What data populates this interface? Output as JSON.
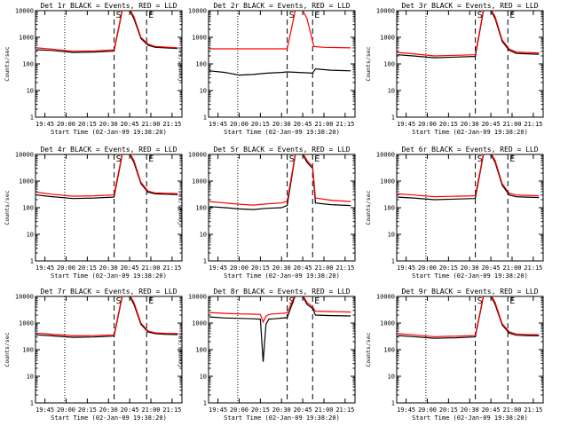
{
  "figure": {
    "background": "#ffffff",
    "colors": {
      "events": "#000000",
      "lld": "#ff0000",
      "axes": "#000000"
    }
  },
  "chart_data": [
    {
      "type": "line",
      "title": "Det 1r BLACK = Events, RED = LLD",
      "xlabel": "Start Time (02-Jan-09 19:38:20)",
      "ylabel": "Counts/sec",
      "yscale": "log",
      "ylim": [
        1,
        10000
      ],
      "ytick_labels": [
        "1",
        "10",
        "100",
        "1000",
        "10000"
      ],
      "xlim": [
        "19:38:20",
        "21:22"
      ],
      "xtick_labels": [
        "19:45",
        "20:00",
        "20:15",
        "20:30",
        "20:45",
        "21:00",
        "21:15"
      ],
      "flags": [
        "S",
        "E"
      ],
      "series": [
        {
          "name": "BLACK = Events",
          "color": "#000000",
          "x": [
            "19:39",
            "19:50",
            "20:05",
            "20:20",
            "20:33",
            "20:34",
            "20:40",
            "20:44",
            "20:48",
            "20:53",
            "20:58",
            "21:03",
            "21:10",
            "21:19"
          ],
          "values": [
            340,
            320,
            270,
            280,
            300,
            305,
            12000,
            13000,
            5000,
            900,
            500,
            420,
            400,
            380
          ]
        },
        {
          "name": "RED = LLD",
          "color": "#ff0000",
          "x": [
            "19:39",
            "19:50",
            "20:05",
            "20:20",
            "20:33",
            "20:34",
            "20:40",
            "20:44",
            "20:48",
            "20:53",
            "20:58",
            "21:03",
            "21:10",
            "21:19"
          ],
          "values": [
            400,
            360,
            300,
            310,
            330,
            340,
            13000,
            14000,
            6000,
            1000,
            560,
            450,
            430,
            400
          ]
        }
      ]
    },
    {
      "type": "line",
      "title": "Det 2r BLACK = Events, RED = LLD",
      "xlabel": "Start Time (02-Jan-09 19:38:20)",
      "ylabel": "Counts/sec",
      "yscale": "log",
      "ylim": [
        1,
        10000
      ],
      "ytick_labels": [
        "1",
        "10",
        "100",
        "1000",
        "10000"
      ],
      "xlim": [
        "19:38:20",
        "21:22"
      ],
      "xtick_labels": [
        "19:45",
        "20:00",
        "20:15",
        "20:30",
        "20:45",
        "21:00",
        "21:15"
      ],
      "flags": [
        "S",
        "E"
      ],
      "series": [
        {
          "name": "BLACK = Events",
          "color": "#000000",
          "x": [
            "19:39",
            "19:50",
            "20:00",
            "20:10",
            "20:20",
            "20:30",
            "20:34",
            "20:52",
            "20:54",
            "21:05",
            "21:19"
          ],
          "values": [
            55,
            48,
            38,
            40,
            45,
            48,
            50,
            45,
            65,
            58,
            55
          ]
        },
        {
          "name": "RED = LLD",
          "color": "#ff0000",
          "x": [
            "19:39",
            "20:34",
            "20:40",
            "20:44",
            "20:48",
            "20:53",
            "21:00",
            "21:10",
            "21:19"
          ],
          "values": [
            370,
            370,
            12000,
            13000,
            5000,
            450,
            420,
            410,
            400
          ]
        }
      ]
    },
    {
      "type": "line",
      "title": "Det 3r BLACK = Events, RED = LLD",
      "xlabel": "Start Time (02-Jan-09 19:38:20)",
      "ylabel": "Counts/sec",
      "yscale": "log",
      "ylim": [
        1,
        10000
      ],
      "ytick_labels": [
        "1",
        "10",
        "100",
        "1000",
        "10000"
      ],
      "xlim": [
        "19:38:20",
        "21:22"
      ],
      "xtick_labels": [
        "19:45",
        "20:00",
        "20:15",
        "20:30",
        "20:45",
        "21:00",
        "21:15"
      ],
      "flags": [
        "S",
        "E"
      ],
      "series": [
        {
          "name": "BLACK = Events",
          "color": "#000000",
          "x": [
            "19:39",
            "19:50",
            "20:05",
            "20:20",
            "20:33",
            "20:34",
            "20:40",
            "20:44",
            "20:48",
            "20:53",
            "20:58",
            "21:03",
            "21:10",
            "21:19"
          ],
          "values": [
            220,
            200,
            170,
            180,
            190,
            195,
            12000,
            13000,
            5000,
            700,
            320,
            250,
            240,
            230
          ]
        },
        {
          "name": "RED = LLD",
          "color": "#ff0000",
          "x": [
            "19:39",
            "19:50",
            "20:05",
            "20:20",
            "20:33",
            "20:34",
            "20:40",
            "20:44",
            "20:48",
            "20:53",
            "20:58",
            "21:03",
            "21:10",
            "21:19"
          ],
          "values": [
            270,
            240,
            200,
            210,
            220,
            225,
            13000,
            14000,
            6000,
            800,
            360,
            280,
            270,
            260
          ]
        }
      ]
    },
    {
      "type": "line",
      "title": "Det 4r BLACK = Events, RED = LLD",
      "xlabel": "Start Time (02-Jan-09 19:38:20)",
      "ylabel": "Counts/sec",
      "yscale": "log",
      "ylim": [
        1,
        10000
      ],
      "ytick_labels": [
        "1",
        "10",
        "100",
        "1000",
        "10000"
      ],
      "xlim": [
        "19:38:20",
        "21:22"
      ],
      "xtick_labels": [
        "19:45",
        "20:00",
        "20:15",
        "20:30",
        "20:45",
        "21:00",
        "21:15"
      ],
      "flags": [
        "S",
        "E"
      ],
      "series": [
        {
          "name": "BLACK = Events",
          "color": "#000000",
          "x": [
            "19:39",
            "19:50",
            "20:05",
            "20:20",
            "20:33",
            "20:34",
            "20:40",
            "20:44",
            "20:48",
            "20:53",
            "20:58",
            "21:03",
            "21:10",
            "21:19"
          ],
          "values": [
            300,
            260,
            220,
            230,
            250,
            255,
            12000,
            13000,
            5000,
            800,
            380,
            330,
            320,
            310
          ]
        },
        {
          "name": "RED = LLD",
          "color": "#ff0000",
          "x": [
            "19:39",
            "19:50",
            "20:05",
            "20:20",
            "20:33",
            "20:34",
            "20:40",
            "20:44",
            "20:48",
            "20:53",
            "20:58",
            "21:03",
            "21:10",
            "21:19"
          ],
          "values": [
            380,
            320,
            270,
            280,
            300,
            310,
            13000,
            14000,
            6000,
            900,
            420,
            360,
            350,
            340
          ]
        }
      ]
    },
    {
      "type": "line",
      "title": "Det 5r BLACK = Events, RED = LLD",
      "xlabel": "Start Time (02-Jan-09 19:38:20)",
      "ylabel": "Counts/sec",
      "yscale": "log",
      "ylim": [
        1,
        10000
      ],
      "ytick_labels": [
        "1",
        "10",
        "100",
        "1000",
        "10000"
      ],
      "xlim": [
        "19:38:20",
        "21:22"
      ],
      "xtick_labels": [
        "19:45",
        "20:00",
        "20:15",
        "20:30",
        "20:45",
        "21:00",
        "21:15"
      ],
      "flags": [
        "S",
        "E"
      ],
      "series": [
        {
          "name": "BLACK = Events",
          "color": "#000000",
          "x": [
            "19:39",
            "19:50",
            "20:00",
            "20:10",
            "20:20",
            "20:30",
            "20:34",
            "20:40",
            "20:44",
            "20:48",
            "20:52",
            "20:54",
            "21:05",
            "21:19"
          ],
          "values": [
            110,
            100,
            90,
            85,
            95,
            100,
            120,
            12000,
            13000,
            5000,
            3000,
            150,
            130,
            120
          ]
        },
        {
          "name": "RED = LLD",
          "color": "#ff0000",
          "x": [
            "19:39",
            "19:50",
            "20:00",
            "20:10",
            "20:20",
            "20:30",
            "20:34",
            "20:40",
            "20:44",
            "20:48",
            "20:52",
            "20:54",
            "21:05",
            "21:19"
          ],
          "values": [
            170,
            150,
            135,
            125,
            140,
            150,
            175,
            13000,
            14000,
            6000,
            3500,
            230,
            190,
            170
          ]
        }
      ]
    },
    {
      "type": "line",
      "title": "Det 6r BLACK = Events, RED = LLD",
      "xlabel": "Start Time (02-Jan-09 19:38:20)",
      "ylabel": "Counts/sec",
      "yscale": "log",
      "ylim": [
        1,
        10000
      ],
      "ytick_labels": [
        "1",
        "10",
        "100",
        "1000",
        "10000"
      ],
      "xlim": [
        "19:38:20",
        "21:22"
      ],
      "xtick_labels": [
        "19:45",
        "20:00",
        "20:15",
        "20:30",
        "20:45",
        "21:00",
        "21:15"
      ],
      "flags": [
        "S",
        "E"
      ],
      "series": [
        {
          "name": "BLACK = Events",
          "color": "#000000",
          "x": [
            "19:39",
            "19:50",
            "20:05",
            "20:20",
            "20:33",
            "20:34",
            "20:40",
            "20:44",
            "20:48",
            "20:53",
            "20:58",
            "21:03",
            "21:10",
            "21:19"
          ],
          "values": [
            250,
            230,
            200,
            210,
            220,
            225,
            12000,
            13000,
            5000,
            700,
            300,
            260,
            250,
            240
          ]
        },
        {
          "name": "RED = LLD",
          "color": "#ff0000",
          "x": [
            "19:39",
            "19:50",
            "20:05",
            "20:20",
            "20:33",
            "20:34",
            "20:40",
            "20:44",
            "20:48",
            "20:53",
            "20:58",
            "21:03",
            "21:10",
            "21:19"
          ],
          "values": [
            330,
            300,
            260,
            270,
            280,
            290,
            13000,
            14000,
            6000,
            800,
            350,
            300,
            290,
            280
          ]
        }
      ]
    },
    {
      "type": "line",
      "title": "Det 7r BLACK = Events, RED = LLD",
      "xlabel": "Start Time (02-Jan-09 19:38:20)",
      "ylabel": "Counts/sec",
      "yscale": "log",
      "ylim": [
        1,
        10000
      ],
      "ytick_labels": [
        "1",
        "10",
        "100",
        "1000",
        "10000"
      ],
      "xlim": [
        "19:38:20",
        "21:22"
      ],
      "xtick_labels": [
        "19:45",
        "20:00",
        "20:15",
        "20:30",
        "20:45",
        "21:00",
        "21:15"
      ],
      "flags": [
        "S",
        "E"
      ],
      "series": [
        {
          "name": "BLACK = Events",
          "color": "#000000",
          "x": [
            "19:39",
            "19:50",
            "20:05",
            "20:20",
            "20:33",
            "20:34",
            "20:40",
            "20:44",
            "20:48",
            "20:53",
            "20:58",
            "21:03",
            "21:10",
            "21:19"
          ],
          "values": [
            360,
            330,
            290,
            300,
            320,
            325,
            12000,
            13000,
            5000,
            900,
            460,
            400,
            380,
            370
          ]
        },
        {
          "name": "RED = LLD",
          "color": "#ff0000",
          "x": [
            "19:39",
            "19:50",
            "20:05",
            "20:20",
            "20:33",
            "20:34",
            "20:40",
            "20:44",
            "20:48",
            "20:53",
            "20:58",
            "21:03",
            "21:10",
            "21:19"
          ],
          "values": [
            420,
            380,
            330,
            340,
            360,
            370,
            13000,
            14000,
            6000,
            1000,
            500,
            430,
            410,
            400
          ]
        }
      ]
    },
    {
      "type": "line",
      "title": "Det 8r BLACK = Events, RED = LLD",
      "xlabel": "Start Time (02-Jan-09 19:38:20)",
      "ylabel": "Counts/sec",
      "yscale": "log",
      "ylim": [
        1,
        10000
      ],
      "ytick_labels": [
        "1",
        "10",
        "100",
        "1000",
        "10000"
      ],
      "xlim": [
        "19:38:20",
        "21:22"
      ],
      "xtick_labels": [
        "19:45",
        "20:00",
        "20:15",
        "20:30",
        "20:45",
        "21:00",
        "21:15"
      ],
      "flags": [
        "S",
        "E"
      ],
      "series": [
        {
          "name": "BLACK = Events",
          "color": "#000000",
          "x": [
            "19:39",
            "19:50",
            "20:00",
            "20:10",
            "20:15",
            "20:17",
            "20:19",
            "20:21",
            "20:25",
            "20:34",
            "20:40",
            "20:44",
            "20:48",
            "20:52",
            "20:54",
            "21:05",
            "21:19"
          ],
          "values": [
            1700,
            1550,
            1500,
            1450,
            1400,
            35,
            900,
            1400,
            1450,
            1600,
            12000,
            13000,
            5000,
            3500,
            2000,
            1900,
            1850
          ]
        },
        {
          "name": "RED = LLD",
          "color": "#ff0000",
          "x": [
            "19:39",
            "19:50",
            "20:00",
            "20:10",
            "20:15",
            "20:17",
            "20:19",
            "20:21",
            "20:25",
            "20:34",
            "20:40",
            "20:44",
            "20:48",
            "20:52",
            "20:54",
            "21:05",
            "21:19"
          ],
          "values": [
            2500,
            2300,
            2200,
            2150,
            2100,
            1100,
            1800,
            2100,
            2200,
            2400,
            13000,
            14000,
            6000,
            4000,
            2800,
            2700,
            2600
          ]
        }
      ]
    },
    {
      "type": "line",
      "title": "Det 9r BLACK = Events, RED = LLD",
      "xlabel": "Start Time (02-Jan-09 19:38:20)",
      "ylabel": "Counts/sec",
      "yscale": "log",
      "ylim": [
        1,
        10000
      ],
      "ytick_labels": [
        "1",
        "10",
        "100",
        "1000",
        "10000"
      ],
      "xlim": [
        "19:38:20",
        "21:22"
      ],
      "xtick_labels": [
        "19:45",
        "20:00",
        "20:15",
        "20:30",
        "20:45",
        "21:00",
        "21:15"
      ],
      "flags": [
        "S",
        "E"
      ],
      "series": [
        {
          "name": "BLACK = Events",
          "color": "#000000",
          "x": [
            "19:39",
            "19:50",
            "20:05",
            "20:20",
            "20:33",
            "20:34",
            "20:40",
            "20:44",
            "20:48",
            "20:53",
            "20:58",
            "21:03",
            "21:10",
            "21:19"
          ],
          "values": [
            340,
            310,
            270,
            280,
            300,
            305,
            12000,
            13000,
            5000,
            850,
            420,
            350,
            340,
            330
          ]
        },
        {
          "name": "RED = LLD",
          "color": "#ff0000",
          "x": [
            "19:39",
            "19:50",
            "20:05",
            "20:20",
            "20:33",
            "20:34",
            "20:40",
            "20:44",
            "20:48",
            "20:53",
            "20:58",
            "21:03",
            "21:10",
            "21:19"
          ],
          "values": [
            400,
            360,
            310,
            320,
            340,
            350,
            13000,
            14000,
            6000,
            950,
            470,
            390,
            375,
            365
          ]
        }
      ]
    }
  ]
}
